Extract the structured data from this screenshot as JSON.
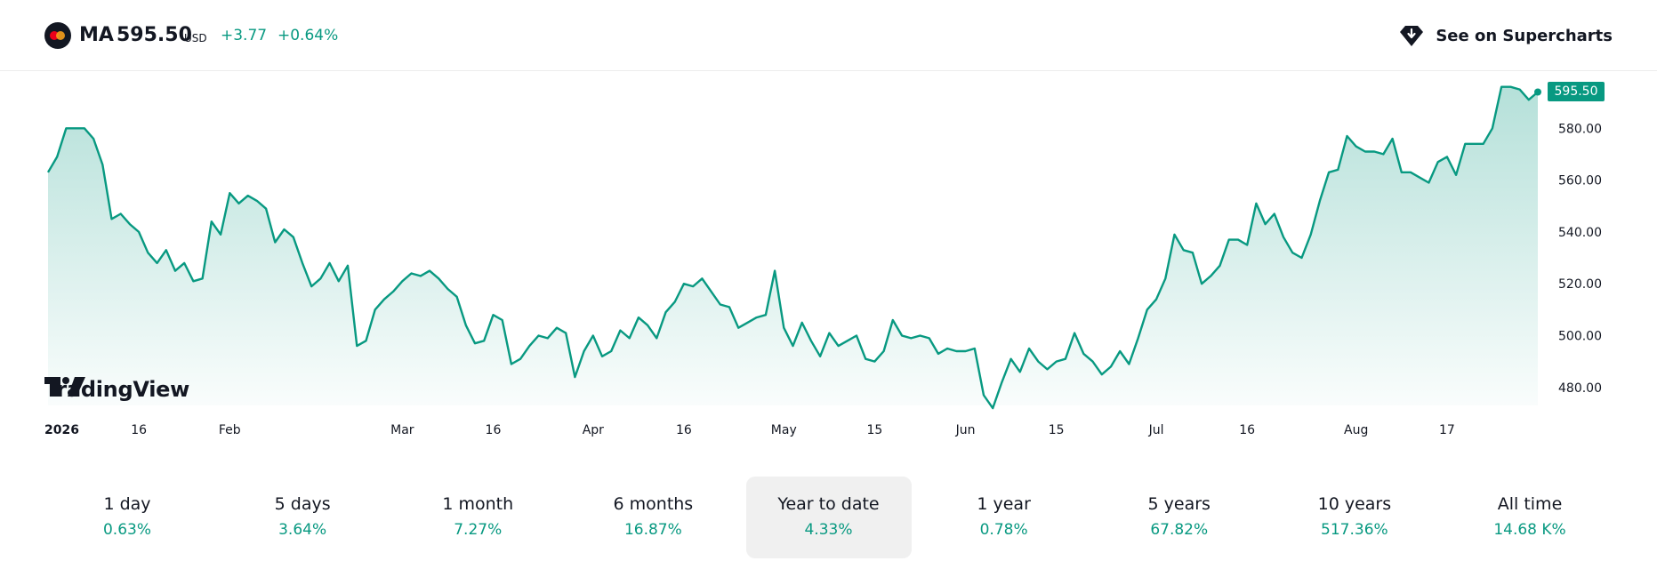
{
  "header": {
    "symbol": "MA",
    "price": "595.50",
    "currency": "USD",
    "change": "+3.77",
    "change_pct": "+0.64%",
    "supercharts_label": "See on Supercharts",
    "logo_icon": "mastercard-logo-icon",
    "supercharts_icon": "gem-icon"
  },
  "brand": {
    "tradingview_label": "TradingView"
  },
  "colors": {
    "line": "#089981",
    "text": "#131722",
    "muted": "#f0f0f0"
  },
  "periods": [
    {
      "label": "1 day",
      "value": "0.63%"
    },
    {
      "label": "5 days",
      "value": "3.64%"
    },
    {
      "label": "1 month",
      "value": "7.27%"
    },
    {
      "label": "6 months",
      "value": "16.87%"
    },
    {
      "label": "Year to date",
      "value": "4.33%",
      "active": true
    },
    {
      "label": "1 year",
      "value": "0.78%"
    },
    {
      "label": "5 years",
      "value": "67.82%"
    },
    {
      "label": "10 years",
      "value": "517.36%"
    },
    {
      "label": "All time",
      "value": "14.68 K%"
    }
  ],
  "chart_data": {
    "type": "area",
    "ylim": [
      471,
      600
    ],
    "y_ticks": [
      480,
      500,
      520,
      540,
      560,
      580
    ],
    "y_tick_labels": [
      "480.00",
      "500.00",
      "520.00",
      "540.00",
      "560.00",
      "580.00"
    ],
    "last_value_label": "595.50",
    "x_labels": [
      {
        "label": "2026",
        "index": 0,
        "bold": true
      },
      {
        "label": "16",
        "index": 10
      },
      {
        "label": "Feb",
        "index": 20
      },
      {
        "label": "Mar",
        "index": 39
      },
      {
        "label": "16",
        "index": 49
      },
      {
        "label": "Apr",
        "index": 60
      },
      {
        "label": "16",
        "index": 70
      },
      {
        "label": "May",
        "index": 81
      },
      {
        "label": "15",
        "index": 91
      },
      {
        "label": "Jun",
        "index": 101
      },
      {
        "label": "15",
        "index": 111
      },
      {
        "label": "Jul",
        "index": 122
      },
      {
        "label": "16",
        "index": 132
      },
      {
        "label": "Aug",
        "index": 144
      },
      {
        "label": "17",
        "index": 154
      }
    ],
    "values": [
      563,
      569,
      580,
      580,
      580,
      576,
      566,
      545,
      547,
      543,
      540,
      532,
      528,
      533,
      525,
      528,
      521,
      522,
      544,
      539,
      555,
      551,
      554,
      552,
      549,
      536,
      541,
      538,
      528,
      519,
      522,
      528,
      521,
      527,
      496,
      498,
      510,
      514,
      517,
      521,
      524,
      523,
      525,
      522,
      518,
      515,
      504,
      497,
      498,
      508,
      506,
      489,
      491,
      496,
      500,
      499,
      503,
      501,
      484,
      494,
      500,
      492,
      494,
      502,
      499,
      507,
      504,
      499,
      509,
      513,
      520,
      519,
      522,
      517,
      512,
      511,
      503,
      505,
      507,
      508,
      525,
      503,
      496,
      505,
      498,
      492,
      501,
      496,
      498,
      500,
      491,
      490,
      494,
      506,
      500,
      499,
      500,
      499,
      493,
      495,
      494,
      494,
      495,
      477,
      472,
      482,
      491,
      486,
      495,
      490,
      487,
      490,
      491,
      501,
      493,
      490,
      485,
      488,
      494,
      489,
      499,
      510,
      514,
      522,
      539,
      533,
      532,
      520,
      523,
      527,
      537,
      537,
      535,
      551,
      543,
      547,
      538,
      532,
      530,
      539,
      552,
      563,
      564,
      577,
      573,
      571,
      571,
      570,
      576,
      563,
      563,
      561,
      559,
      567,
      569,
      562,
      574,
      574,
      574,
      580,
      596,
      596,
      595,
      591,
      594
    ]
  }
}
